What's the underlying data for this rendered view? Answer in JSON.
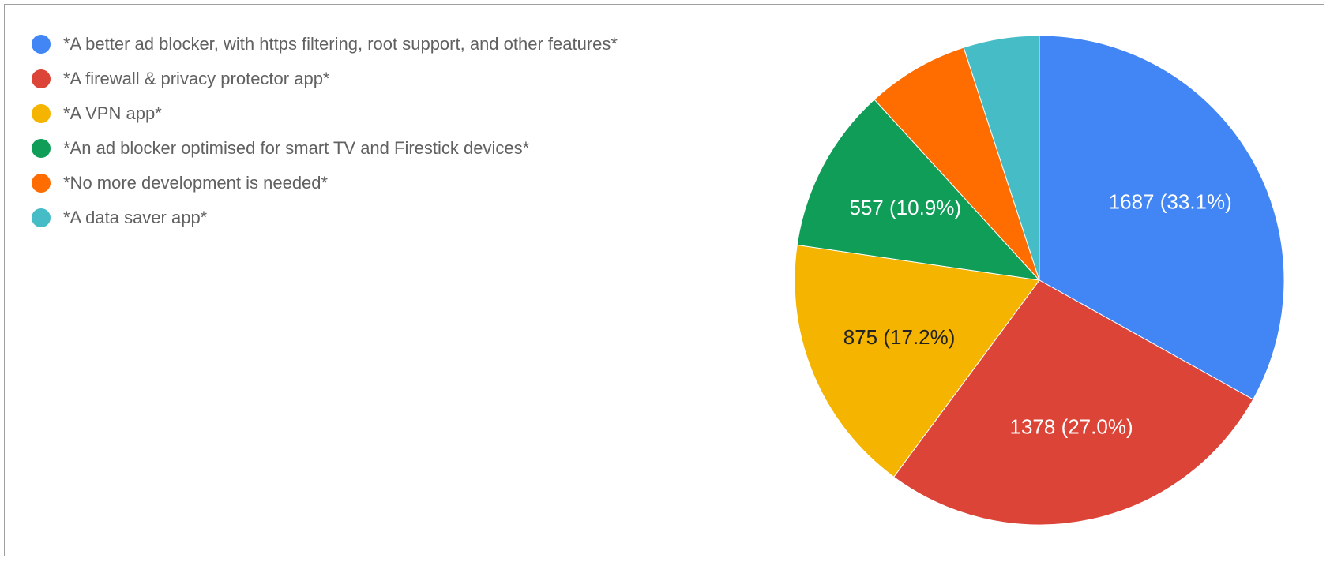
{
  "chart_data": {
    "type": "pie",
    "title": "",
    "start_angle": "top",
    "direction": "clockwise",
    "legend_position": "top-left",
    "slices": [
      {
        "name": "*A better ad blocker, with https filtering, root support, and other features*",
        "value": 1687,
        "label": "1687 (33.1%)",
        "color": "#4285F4",
        "label_color": "#FFFFFF"
      },
      {
        "name": "*A firewall & privacy protector app*",
        "value": 1378,
        "label": "1378 (27.0%)",
        "color": "#DB4437",
        "label_color": "#FFFFFF"
      },
      {
        "name": "*A VPN app*",
        "value": 875,
        "label": "875 (17.2%)",
        "color": "#F4B400",
        "label_color": "#222222"
      },
      {
        "name": "*An ad blocker optimised for smart TV and Firestick devices*",
        "value": 557,
        "label": "557 (10.9%)",
        "color": "#0F9D58",
        "label_color": "#FFFFFF"
      },
      {
        "name": "*No more development is needed*",
        "value": 345,
        "label": "",
        "color": "#FF6D00",
        "label_color": "#FFFFFF"
      },
      {
        "name": "*A data saver app*",
        "value": 255,
        "label": "",
        "color": "#46BDC6",
        "label_color": "#FFFFFF"
      }
    ]
  }
}
